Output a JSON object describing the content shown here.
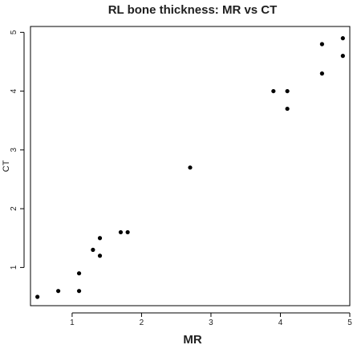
{
  "chart_data": {
    "type": "scatter",
    "title": "RL bone thickness: MR vs CT",
    "xlabel": "MR",
    "ylabel": "CT",
    "xlim": [
      0.4,
      5.0
    ],
    "ylim": [
      0.35,
      5.1
    ],
    "xticks": [
      1,
      2,
      3,
      4,
      5
    ],
    "yticks": [
      1,
      2,
      3,
      4,
      5
    ],
    "grid": false,
    "marker_color": "#000000",
    "points": [
      {
        "x": 0.5,
        "y": 0.5
      },
      {
        "x": 0.8,
        "y": 0.6
      },
      {
        "x": 1.1,
        "y": 0.6
      },
      {
        "x": 1.1,
        "y": 0.9
      },
      {
        "x": 1.3,
        "y": 1.3
      },
      {
        "x": 1.4,
        "y": 1.2
      },
      {
        "x": 1.4,
        "y": 1.5
      },
      {
        "x": 1.7,
        "y": 1.6
      },
      {
        "x": 1.8,
        "y": 1.6
      },
      {
        "x": 2.7,
        "y": 2.7
      },
      {
        "x": 3.9,
        "y": 4.0
      },
      {
        "x": 4.1,
        "y": 4.0
      },
      {
        "x": 4.1,
        "y": 3.7
      },
      {
        "x": 4.6,
        "y": 4.8
      },
      {
        "x": 4.6,
        "y": 4.3
      },
      {
        "x": 4.9,
        "y": 4.9
      },
      {
        "x": 4.9,
        "y": 4.6
      }
    ]
  }
}
